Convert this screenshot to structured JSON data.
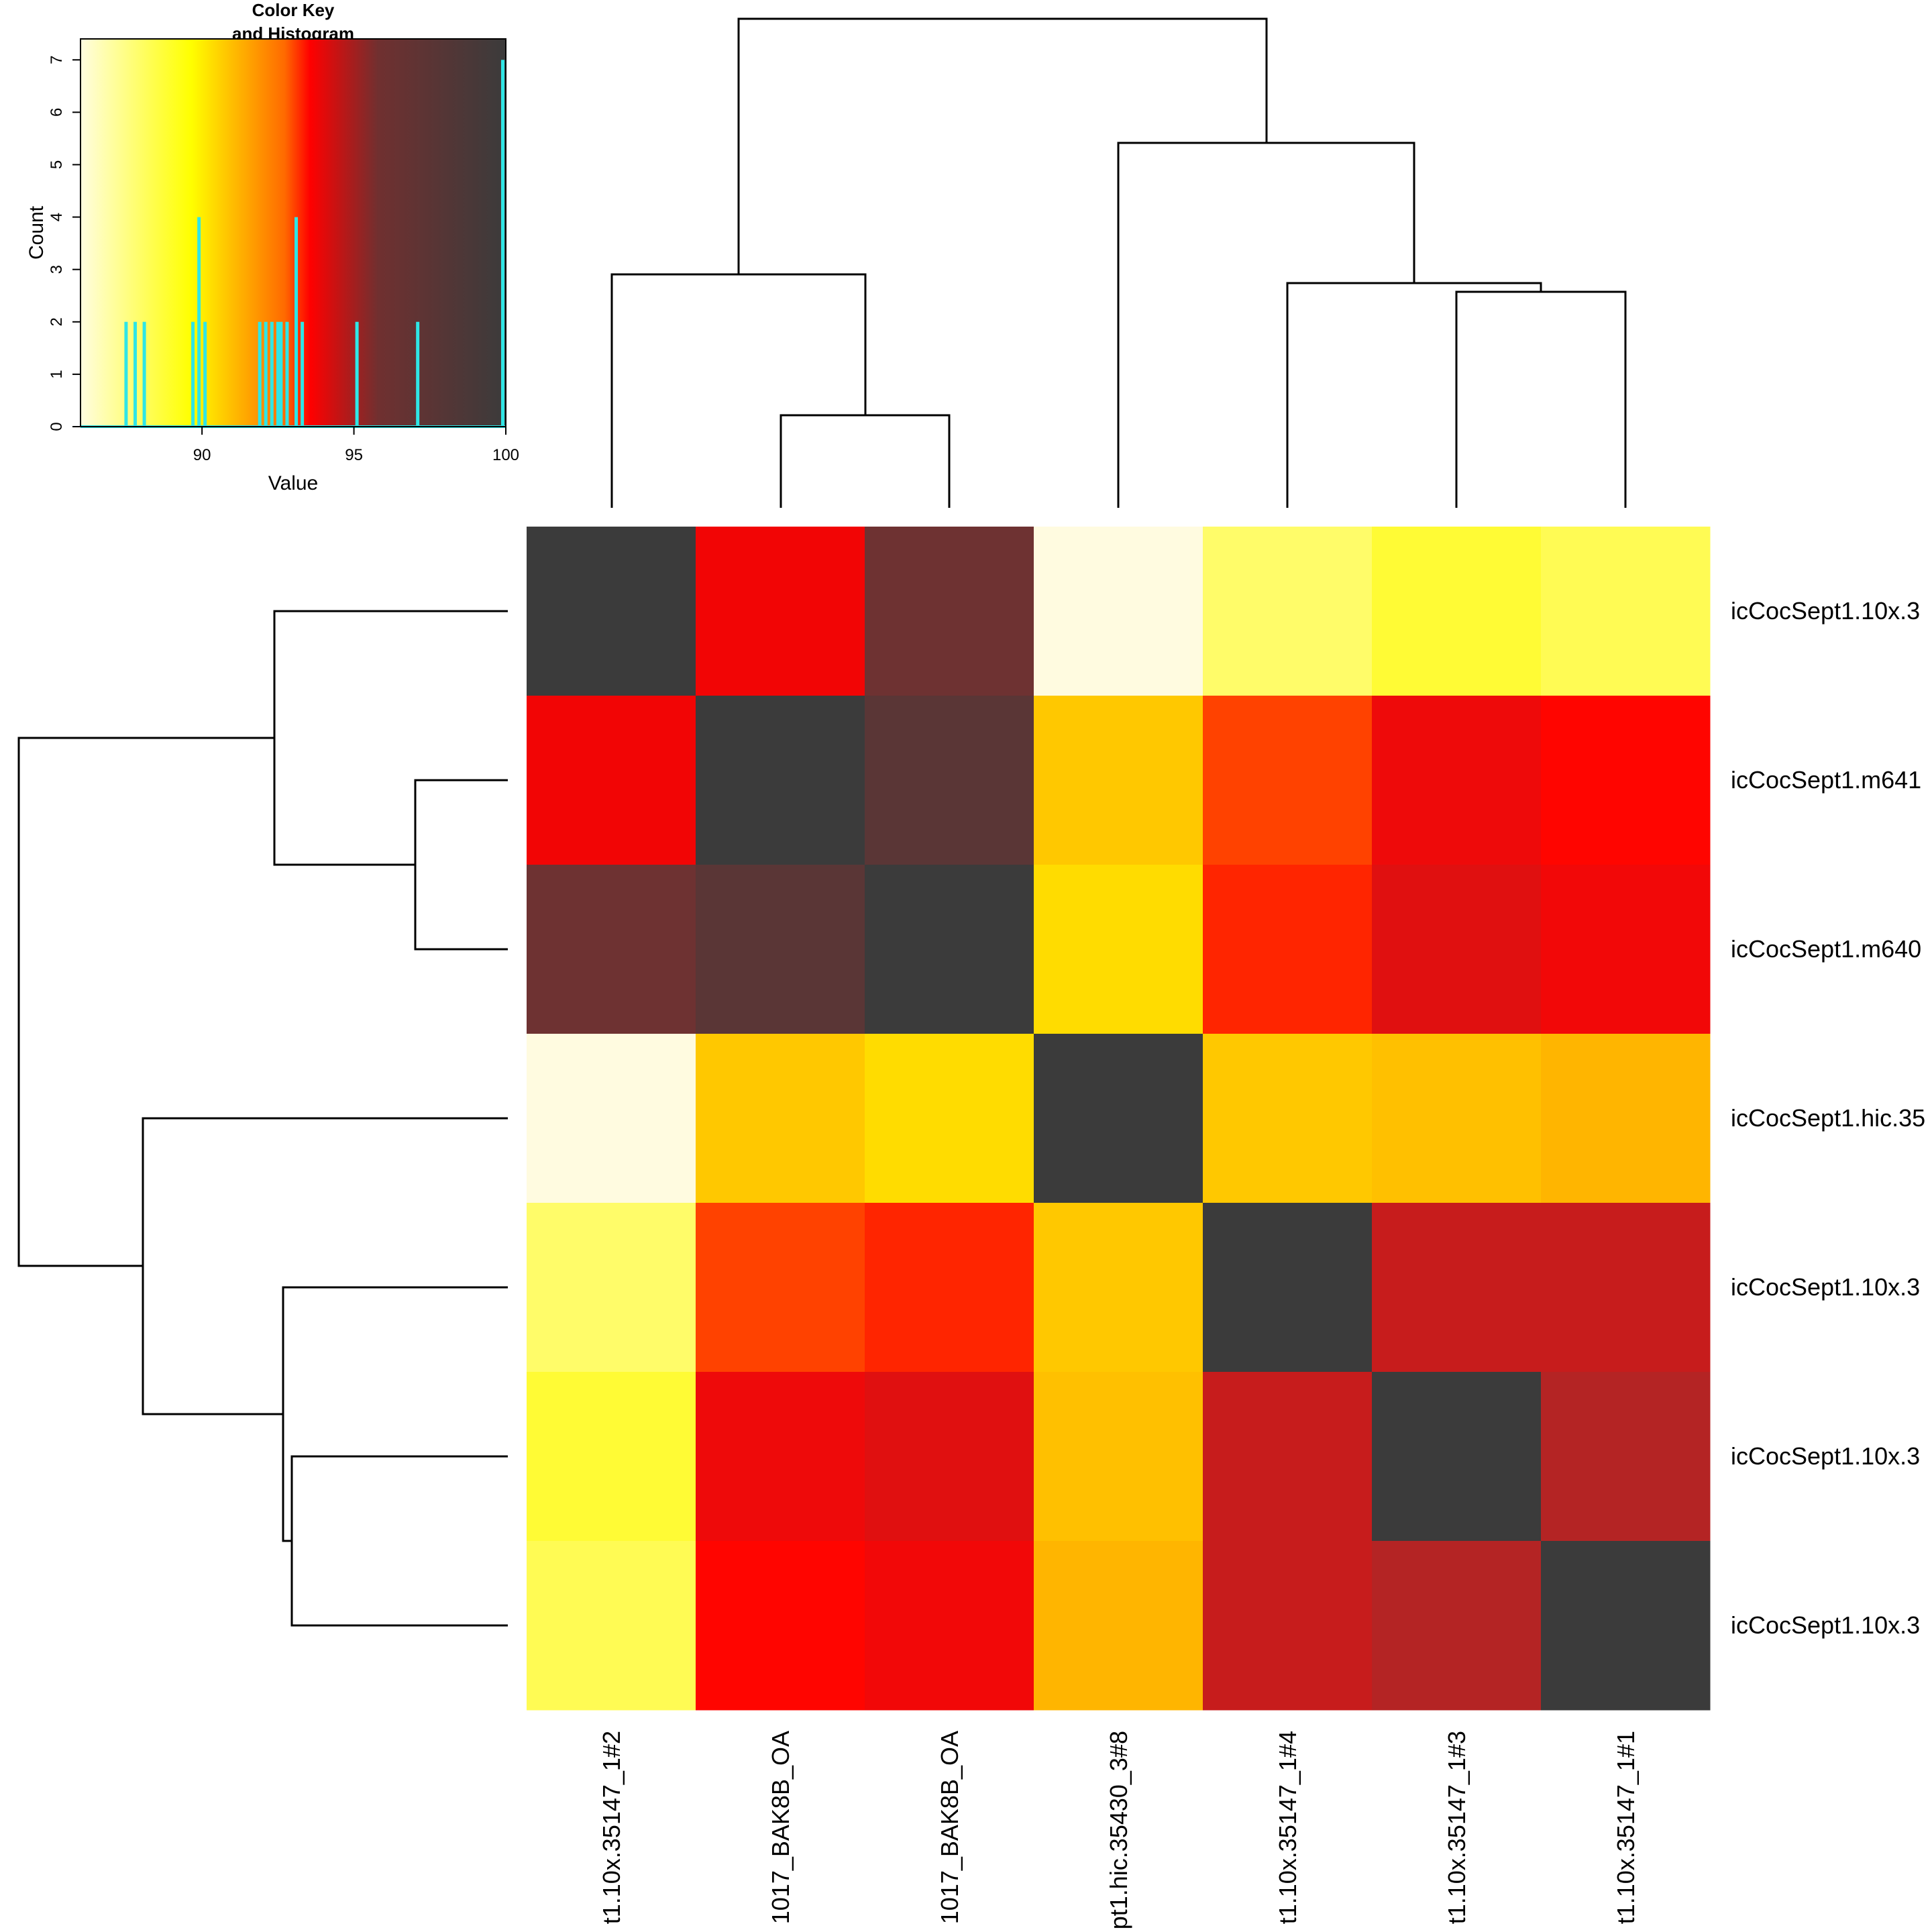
{
  "colors": {
    "histogram": "#2fe6e6",
    "diagonal": "#3b3b3b",
    "scale": [
      "#fffde0",
      "#ffff00",
      "#ff0000",
      "#703030",
      "#3b3b3b"
    ]
  },
  "chart_data": {
    "type": "heatmap",
    "row_labels": [
      "icCocSept1.10x.3",
      "icCocSept1.m641",
      "icCocSept1.m640",
      "icCocSept1.hic.35",
      "icCocSept1.10x.3",
      "icCocSept1.10x.3",
      "icCocSept1.10x.3"
    ],
    "col_labels": [
      "t1.10x.35147_1#2",
      "1017_BAK8B_OA",
      "1017_BAK8B_OA",
      "pt1.hic.35430_3#8",
      "t1.10x.35147_1#4",
      "t1.10x.35147_1#3",
      "t1.10x.35147_1#1"
    ],
    "cell_colors": [
      [
        "#3b3b3b",
        "#f20505",
        "#6e3232",
        "#fffbe0",
        "#fffc69",
        "#fffb35",
        "#fffb54"
      ],
      [
        "#f20505",
        "#3b3b3b",
        "#5a3636",
        "#ffc800",
        "#ff4200",
        "#ee0a0a",
        "#ff0500"
      ],
      [
        "#6e3232",
        "#5a3636",
        "#3b3b3b",
        "#ffdc00",
        "#ff2500",
        "#e01010",
        "#f20808"
      ],
      [
        "#fffbe0",
        "#ffc800",
        "#ffdc00",
        "#3b3b3b",
        "#ffc800",
        "#ffc000",
        "#ffb500"
      ],
      [
        "#fffc69",
        "#ff4200",
        "#ff2500",
        "#ffc800",
        "#3b3b3b",
        "#c71c1c",
        "#c71c1c"
      ],
      [
        "#fffb35",
        "#ee0a0a",
        "#e01010",
        "#ffc000",
        "#c71c1c",
        "#3b3b3b",
        "#b42424"
      ],
      [
        "#fffb54",
        "#ff0500",
        "#f20808",
        "#ffb500",
        "#c71c1c",
        "#b42424",
        "#3b3b3b"
      ]
    ],
    "color_key": {
      "title_line1": "Color Key",
      "title_line2": "and Histogram",
      "xlabel": "Value",
      "ylabel": "Count",
      "xlim": [
        86,
        100
      ],
      "ylim": [
        0,
        7.4
      ],
      "x_ticks": [
        90,
        95,
        100
      ],
      "y_ticks": [
        0,
        1,
        2,
        3,
        4,
        5,
        6,
        7
      ],
      "histogram": [
        {
          "x": 87.5,
          "count": 2
        },
        {
          "x": 87.8,
          "count": 2
        },
        {
          "x": 88.1,
          "count": 2
        },
        {
          "x": 89.7,
          "count": 2
        },
        {
          "x": 89.9,
          "count": 4
        },
        {
          "x": 90.1,
          "count": 2
        },
        {
          "x": 91.9,
          "count": 2
        },
        {
          "x": 92.1,
          "count": 2
        },
        {
          "x": 92.3,
          "count": 2
        },
        {
          "x": 92.5,
          "count": 2
        },
        {
          "x": 92.6,
          "count": 2
        },
        {
          "x": 92.8,
          "count": 2
        },
        {
          "x": 93.1,
          "count": 4
        },
        {
          "x": 93.3,
          "count": 2
        },
        {
          "x": 95.1,
          "count": 2
        },
        {
          "x": 97.1,
          "count": 2
        },
        {
          "x": 99.9,
          "count": 7
        }
      ]
    }
  }
}
